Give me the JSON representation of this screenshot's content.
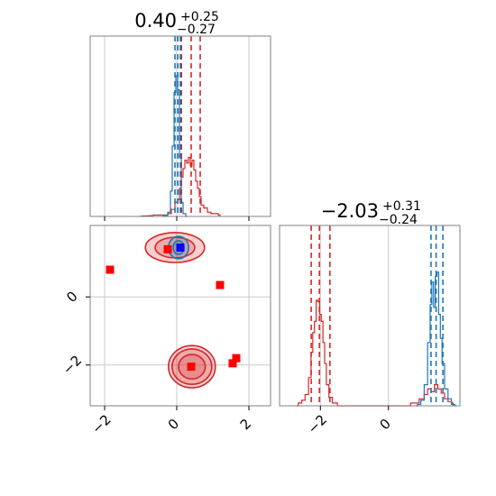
{
  "chart_data": {
    "type": "corner",
    "colors": {
      "red": "#d62728",
      "blue": "#1f77b4",
      "marker_red": "#ff0000",
      "marker_blue": "#0000ff",
      "grid": "#c8c8c8",
      "frame": "#808080"
    },
    "panels": [
      {
        "id": "hist-x",
        "type": "histogram",
        "title": {
          "value": "0.40",
          "plus": "+0.25",
          "minus": "−0.27"
        },
        "xlim": [
          -2.4,
          2.6
        ],
        "gridlines_x": [
          -2,
          0,
          2
        ],
        "tick_labels_x": [],
        "series": [
          {
            "name": "red",
            "color": "#d62728",
            "x": [
              -1.0,
              -0.9,
              -0.8,
              -0.7,
              -0.6,
              -0.5,
              -0.4,
              -0.3,
              -0.2,
              -0.1,
              0.0,
              0.05,
              0.1,
              0.15,
              0.2,
              0.25,
              0.3,
              0.35,
              0.4,
              0.45,
              0.5,
              0.55,
              0.6,
              0.65,
              0.7,
              0.8,
              0.9,
              1.0,
              1.1,
              1.2
            ],
            "y": [
              0.002,
              0.003,
              0.004,
              0.006,
              0.01,
              0.01,
              0.01,
              0.008,
              0.02,
              0.05,
              0.1,
              0.12,
              0.2,
              0.28,
              0.34,
              0.4,
              0.38,
              0.42,
              0.36,
              0.4,
              0.33,
              0.25,
              0.2,
              0.14,
              0.08,
              0.06,
              0.03,
              0.02,
              0.02,
              0.01
            ],
            "quantiles": [
              0.13,
              0.4,
              0.65
            ]
          },
          {
            "name": "blue",
            "color": "#1f77b4",
            "x": [
              -0.4,
              -0.3,
              -0.2,
              -0.15,
              -0.1,
              -0.05,
              0.0,
              0.05,
              0.1,
              0.15,
              0.2,
              0.3
            ],
            "y": [
              0.0,
              0.01,
              0.03,
              0.18,
              0.5,
              0.88,
              1.0,
              0.9,
              0.42,
              0.1,
              0.02,
              0.0
            ],
            "quantiles": [
              -0.05,
              0.03,
              0.1
            ]
          }
        ]
      },
      {
        "id": "scatter-xy",
        "type": "2d",
        "xlim": [
          -2.4,
          2.6
        ],
        "ylim": [
          -3.2,
          2.1
        ],
        "gridlines_x": [
          -2,
          0,
          2
        ],
        "gridlines_y": [
          -2,
          0
        ],
        "tick_labels_x": [
          "−2",
          "0",
          "2"
        ],
        "tick_labels_y": [
          "−2",
          "0"
        ],
        "contours": [
          {
            "series": "red",
            "cx": 0.42,
            "cy": -2.05,
            "levels": [
              {
                "rx": 0.65,
                "ry": 0.62
              },
              {
                "rx": 0.55,
                "ry": 0.52
              },
              {
                "rx": 0.37,
                "ry": 0.36
              }
            ]
          },
          {
            "series": "red",
            "cx": -0.05,
            "cy": 1.45,
            "levels": [
              {
                "rx": 0.82,
                "ry": 0.44
              },
              {
                "rx": 0.55,
                "ry": 0.3
              }
            ]
          },
          {
            "series": "blue",
            "cx": 0.05,
            "cy": 1.45,
            "levels": [
              {
                "rx": 0.28,
                "ry": 0.33
              },
              {
                "rx": 0.15,
                "ry": 0.2
              }
            ]
          }
        ],
        "markers": [
          {
            "x": -1.85,
            "y": 0.8,
            "color": "#ff0000"
          },
          {
            "x": -0.25,
            "y": 1.4,
            "color": "#ff0000"
          },
          {
            "x": 1.2,
            "y": 0.35,
            "color": "#ff0000"
          },
          {
            "x": 1.65,
            "y": -1.8,
            "color": "#ff0000"
          },
          {
            "x": 1.55,
            "y": -1.95,
            "color": "#ff0000"
          },
          {
            "x": 0.4,
            "y": -2.05,
            "color": "#ff0000"
          },
          {
            "x": 0.1,
            "y": 1.45,
            "color": "#0000ff"
          }
        ]
      },
      {
        "id": "hist-y",
        "type": "histogram",
        "title": {
          "value": "−2.03",
          "plus": "+0.31",
          "minus": "−0.24"
        },
        "xlim": [
          -3.2,
          2.1
        ],
        "gridlines_x": [
          -2,
          0
        ],
        "tick_labels_x": [
          "−2",
          "0"
        ],
        "series": [
          {
            "name": "red",
            "color": "#d62728",
            "x": [
              -2.7,
              -2.6,
              -2.5,
              -2.4,
              -2.3,
              -2.25,
              -2.2,
              -2.15,
              -2.1,
              -2.05,
              -2.0,
              -1.95,
              -1.9,
              -1.85,
              -1.8,
              -1.7,
              -1.6,
              -1.4,
              -1.0,
              0.0,
              0.5,
              0.8,
              1.0,
              1.1,
              1.2,
              1.3,
              1.4,
              1.5,
              1.6,
              1.7,
              1.8,
              1.9
            ],
            "y": [
              0.0,
              0.02,
              0.04,
              0.08,
              0.2,
              0.38,
              0.52,
              0.6,
              0.75,
              0.74,
              0.65,
              0.6,
              0.45,
              0.3,
              0.15,
              0.06,
              0.02,
              0.0,
              0.0,
              0.0,
              0.0,
              0.02,
              0.05,
              0.08,
              0.12,
              0.1,
              0.15,
              0.12,
              0.09,
              0.05,
              0.03,
              0.02
            ],
            "quantiles": [
              -2.27,
              -2.03,
              -1.72
            ]
          },
          {
            "name": "blue",
            "color": "#1f77b4",
            "x": [
              0.8,
              0.9,
              1.0,
              1.1,
              1.2,
              1.25,
              1.3,
              1.35,
              1.4,
              1.45,
              1.5,
              1.55,
              1.6,
              1.7,
              1.8,
              1.9,
              2.0
            ],
            "y": [
              0.0,
              0.01,
              0.04,
              0.15,
              0.45,
              0.72,
              0.88,
              0.7,
              0.92,
              0.95,
              0.65,
              0.48,
              0.3,
              0.12,
              0.05,
              0.01,
              0.0
            ],
            "quantiles": [
              1.25,
              1.4,
              1.6
            ]
          }
        ]
      }
    ]
  }
}
